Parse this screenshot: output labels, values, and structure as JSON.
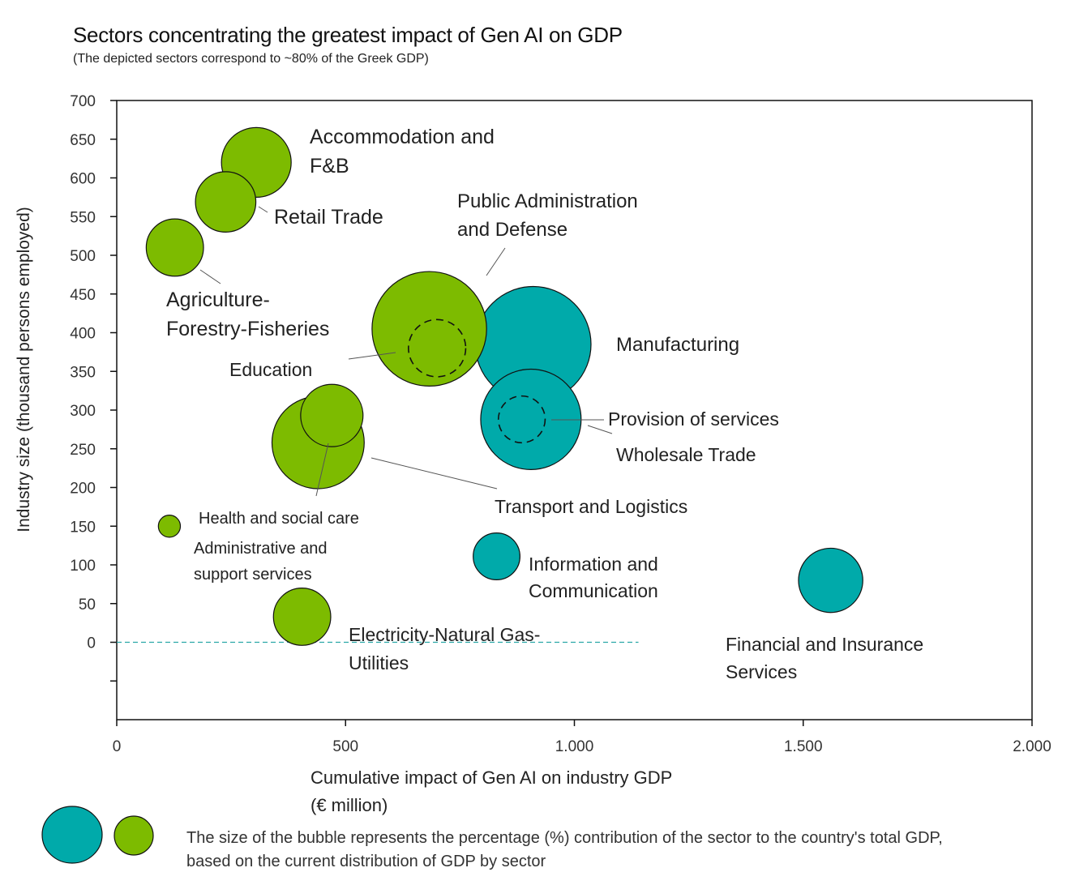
{
  "title": "Sectors concentrating the greatest impact of Gen AI on GDP",
  "subtitle": "(The depicted sectors correspond to ~80% of the Greek GDP)",
  "colors": {
    "green": "#7dbb00",
    "teal": "#00aaaa",
    "stroke": "#111111"
  },
  "legend_text": "The size of the bubble represents the percentage (%) contribution of the sector to the country's total GDP, based on the current distribution of GDP by sector",
  "chart_data": {
    "type": "scatter",
    "subtype": "bubble",
    "xlabel_lines": [
      "Cumulative impact of Gen AI on industry GDP",
      "(€ million)"
    ],
    "ylabel": "Industry size (thousand persons employed)",
    "xlim": [
      0,
      2000
    ],
    "ylim": [
      -100,
      700
    ],
    "x_ticks": [
      {
        "value": 0,
        "label": "0"
      },
      {
        "value": 500,
        "label": "500"
      },
      {
        "value": 1000,
        "label": "1.000"
      },
      {
        "value": 1500,
        "label": "1.500"
      },
      {
        "value": 2000,
        "label": "2.000"
      }
    ],
    "y_ticks": [
      {
        "value": 700,
        "label": "700"
      },
      {
        "value": 650,
        "label": "650"
      },
      {
        "value": 600,
        "label": "600"
      },
      {
        "value": 550,
        "label": "550"
      },
      {
        "value": 500,
        "label": "500"
      },
      {
        "value": 450,
        "label": "450"
      },
      {
        "value": 400,
        "label": "400"
      },
      {
        "value": 350,
        "label": "350"
      },
      {
        "value": 300,
        "label": "300"
      },
      {
        "value": 250,
        "label": "250"
      },
      {
        "value": 200,
        "label": "200"
      },
      {
        "value": 150,
        "label": "150"
      },
      {
        "value": 100,
        "label": "100"
      },
      {
        "value": 50,
        "label": "50"
      },
      {
        "value": 0,
        "label": "0"
      },
      {
        "value": -50,
        "label": ""
      }
    ],
    "grid": false,
    "bubble_size_unit": "relative GDP contribution",
    "points": [
      {
        "label": "Accommodation and F&B",
        "x": 305,
        "y": 620,
        "size": 4.0,
        "group": "green"
      },
      {
        "label": "Retail Trade",
        "x": 238,
        "y": 569,
        "size": 3.0,
        "group": "green"
      },
      {
        "label": "Agriculture-Forestry-Fisheries",
        "x": 127,
        "y": 510,
        "size": 2.7,
        "group": "green"
      },
      {
        "label": "Manufacturing",
        "x": 910,
        "y": 385,
        "size": 11.0,
        "group": "teal"
      },
      {
        "label": "Public Administration and Defense",
        "x": 683,
        "y": 405,
        "size": 10.8,
        "group": "green"
      },
      {
        "label": "Education",
        "x": 700,
        "y": 380,
        "size": 2.7,
        "group": "green",
        "dashed": true
      },
      {
        "label": "Wholesale Trade",
        "x": 905,
        "y": 288,
        "size": 8.3,
        "group": "teal"
      },
      {
        "label": "Provision of services",
        "x": 885,
        "y": 288,
        "size": 1.8,
        "group": "teal",
        "dashed": true
      },
      {
        "label": "Transport and Logistics",
        "x": 440,
        "y": 258,
        "size": 7.0,
        "group": "green"
      },
      {
        "label": "Administrative and support services",
        "x": 470,
        "y": 293,
        "size": 3.2,
        "group": "green"
      },
      {
        "label": "Health and social care",
        "x": 115,
        "y": 150,
        "size": 0.4,
        "group": "green"
      },
      {
        "label": "Information and Communication",
        "x": 830,
        "y": 111,
        "size": 1.8,
        "group": "teal"
      },
      {
        "label": "Financial and Insurance Services",
        "x": 1560,
        "y": 80,
        "size": 3.4,
        "group": "teal"
      },
      {
        "label": "Electricity-Natural Gas-Utilities",
        "x": 405,
        "y": 33,
        "size": 2.7,
        "group": "green"
      }
    ],
    "annotations": [
      {
        "id": "accommodation",
        "lines": [
          "Accommodation and",
          "F&B"
        ]
      },
      {
        "id": "retail",
        "lines": [
          "Retail Trade"
        ]
      },
      {
        "id": "agriculture",
        "lines": [
          "Agriculture-",
          "Forestry-Fisheries"
        ]
      },
      {
        "id": "public_admin",
        "lines": [
          "Public Administration",
          "and Defense"
        ]
      },
      {
        "id": "manufacturing",
        "lines": [
          "Manufacturing"
        ]
      },
      {
        "id": "education",
        "lines": [
          "Education"
        ]
      },
      {
        "id": "provision",
        "lines": [
          "Provision of services"
        ]
      },
      {
        "id": "wholesale",
        "lines": [
          "Wholesale Trade"
        ]
      },
      {
        "id": "transport",
        "lines": [
          "Transport and Logistics"
        ]
      },
      {
        "id": "health",
        "lines": [
          "Health and social care"
        ]
      },
      {
        "id": "administrative",
        "lines": [
          "Administrative and",
          "support services"
        ]
      },
      {
        "id": "information",
        "lines": [
          "Information and",
          "Communication"
        ]
      },
      {
        "id": "electricity",
        "lines": [
          "Electricity-Natural Gas-",
          "Utilities"
        ]
      },
      {
        "id": "financial",
        "lines": [
          "Financial and Insurance",
          "Services"
        ]
      }
    ]
  }
}
